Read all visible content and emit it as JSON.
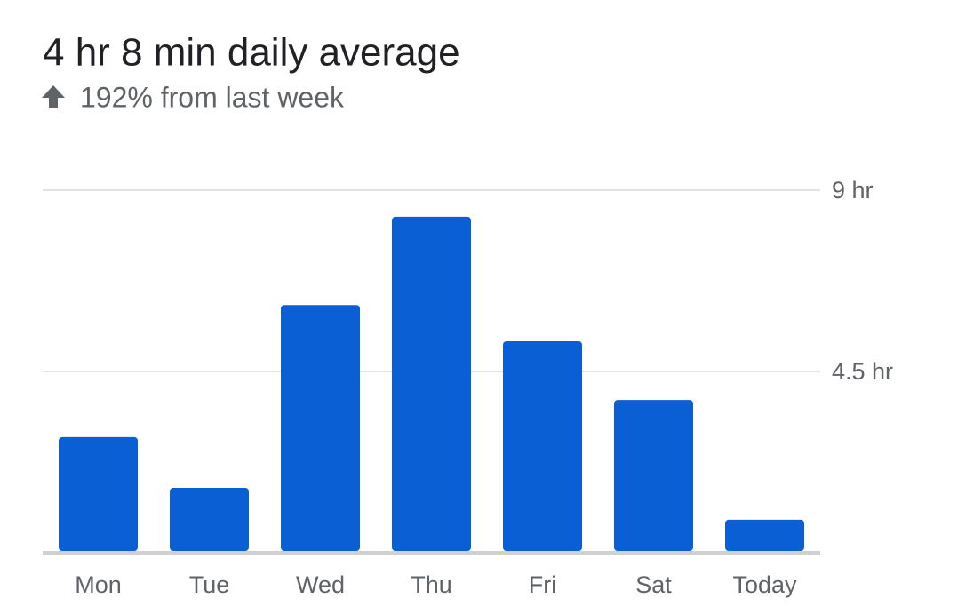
{
  "chart_data": {
    "type": "bar",
    "title": "4 hr 8 min daily average",
    "subtitle": "192% from last week",
    "categories": [
      "Mon",
      "Tue",
      "Wed",
      "Thu",
      "Fri",
      "Sat",
      "Today"
    ],
    "values": [
      2.87,
      1.61,
      6.15,
      8.34,
      5.25,
      3.79,
      0.82
    ],
    "color": "#0b5fd5",
    "ylim": [
      0,
      9
    ],
    "yticks": [
      {
        "value": 4.5,
        "label": "4.5 hr"
      },
      {
        "value": 9,
        "label": "9 hr"
      }
    ],
    "grid": true
  }
}
